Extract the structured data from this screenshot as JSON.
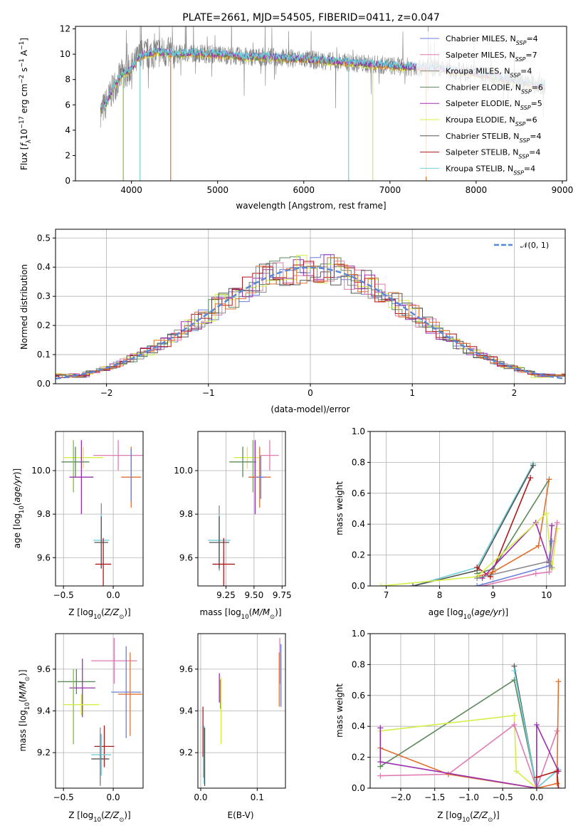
{
  "colors": {
    "Chabrier MILES": "#6a7fdb",
    "Salpeter MILES": "#e07ab0",
    "Kroupa MILES": "#8a8a8a",
    "Chabrier ELODIE": "#5b8a5b",
    "Salpeter ELODIE": "#9a2fb0",
    "Kroupa ELODIE": "#d4ee48",
    "Chabrier STELIB": "#555555",
    "Salpeter STELIB": "#b01818",
    "Kroupa STELIB": "#70d0dc",
    "orange": "#e07030",
    "green": "#7ac040",
    "normal": "#5a86d6"
  },
  "chart_data": [
    {
      "id": "spectrum",
      "type": "line",
      "title": "PLATE=2661, MJD=54505, FIBERID=0411, z=0.047",
      "xlabel": "wavelength [Angstrom, rest frame]",
      "ylabel": "Flux [f_λ 10^-17 erg cm^-2 s^-1 A^-1]",
      "xlim": [
        3350,
        9050
      ],
      "ylim": [
        0,
        12.2
      ],
      "xticks": [
        4000,
        5000,
        6000,
        7000,
        8000,
        9000
      ],
      "yticks": [
        0,
        2,
        4,
        6,
        8,
        10,
        12
      ],
      "legend_position": "upper-right",
      "legend": [
        {
          "name": "Chabrier MILES",
          "sub": "SSP",
          "n": "4"
        },
        {
          "name": "Salpeter MILES",
          "sub": "SSP",
          "n": "7"
        },
        {
          "name": "Kroupa MILES",
          "sub": "SSP",
          "n": "4"
        },
        {
          "name": "Chabrier ELODIE",
          "sub": "SSP",
          "n": "6"
        },
        {
          "name": "Salpeter ELODIE",
          "sub": "SSP",
          "n": "5"
        },
        {
          "name": "Kroupa ELODIE",
          "sub": "SSP",
          "n": "6"
        },
        {
          "name": "Chabrier STELIB",
          "sub": "SSP",
          "n": "4"
        },
        {
          "name": "Salpeter STELIB",
          "sub": "SSP",
          "n": "4"
        },
        {
          "name": "Kroupa STELIB",
          "sub": "SSP",
          "n": "4"
        }
      ],
      "shape_x": [
        3650,
        3700,
        3800,
        3900,
        4000,
        4100,
        4300,
        4500,
        4700,
        5000,
        5300,
        5600,
        6000,
        6400,
        6800,
        7200,
        7500,
        7700,
        7900,
        8100,
        8300,
        8500,
        8800
      ],
      "shape_y": [
        5.5,
        6.0,
        7.5,
        8.5,
        8.8,
        9.9,
        10.2,
        10.0,
        10.1,
        10.0,
        9.8,
        9.8,
        9.6,
        9.4,
        9.2,
        9.0,
        8.9,
        8.7,
        8.6,
        8.4,
        8.1,
        7.8,
        7.4
      ]
    },
    {
      "id": "residuals",
      "type": "histogram",
      "xlabel": "(data-model)/error",
      "ylabel": "Normed distribution",
      "xlim": [
        -2.5,
        2.5
      ],
      "ylim": [
        0,
        0.53
      ],
      "xticks": [
        -2,
        -1,
        0,
        1,
        2
      ],
      "yticks": [
        0.0,
        0.1,
        0.2,
        0.3,
        0.4,
        0.5
      ],
      "legend_position": "upper-right",
      "legend": [
        {
          "name": "𝒩(0, 1)"
        }
      ]
    },
    {
      "id": "age-vs-Z",
      "type": "errorbar",
      "xlabel": "Z [log10(Z/Z⊙)]",
      "ylabel": "age  [log10(age/yr)]",
      "xlim": [
        -0.58,
        0.3
      ],
      "ylim": [
        9.47,
        10.18
      ],
      "xticks": [
        -0.5,
        0.0
      ],
      "yticks": [
        9.6,
        9.8,
        10.0
      ],
      "points": [
        {
          "c": "Salpeter MILES",
          "x": 0.05,
          "y": 10.07,
          "ex": 0.25,
          "ey": 0.07
        },
        {
          "c": "Kroupa ELODIE",
          "x": -0.3,
          "y": 10.06,
          "ex": 0.2,
          "ey": 0.05
        },
        {
          "c": "Chabrier ELODIE",
          "x": -0.38,
          "y": 10.04,
          "ex": 0.14,
          "ey": 0.07
        },
        {
          "c": "green",
          "x": -0.4,
          "y": 10.02,
          "ex": 0.0,
          "ey": 0.12
        },
        {
          "c": "Salpeter ELODIE",
          "x": -0.32,
          "y": 9.97,
          "ex": 0.12,
          "ey": 0.17
        },
        {
          "c": "orange",
          "x": 0.18,
          "y": 9.97,
          "ex": 0.1,
          "ey": 0.14
        },
        {
          "c": "Chabrier MILES",
          "x": 0.18,
          "y": 9.98,
          "ex": 0.0,
          "ey": 0.12
        },
        {
          "c": "Kroupa MILES",
          "x": -0.12,
          "y": 9.7,
          "ex": 0.0,
          "ey": 0.15
        },
        {
          "c": "Kroupa STELIB",
          "x": -0.12,
          "y": 9.68,
          "ex": 0.08,
          "ey": 0.12
        },
        {
          "c": "Chabrier STELIB",
          "x": -0.12,
          "y": 9.67,
          "ex": 0.07,
          "ey": 0.12
        },
        {
          "c": "Salpeter STELIB",
          "x": -0.1,
          "y": 9.57,
          "ex": 0.08,
          "ey": 0.12
        }
      ]
    },
    {
      "id": "age-vs-mass",
      "type": "errorbar",
      "xlabel": "mass [log10(M/M⊙)]",
      "ylabel": "",
      "xlim": [
        9.0,
        9.78
      ],
      "ylim": [
        9.47,
        10.18
      ],
      "xticks": [
        9.25,
        9.5,
        9.75
      ],
      "yticks": [
        9.6,
        9.8,
        10.0
      ],
      "points": [
        {
          "c": "Salpeter MILES",
          "x": 9.64,
          "y": 10.07,
          "ex": 0.08,
          "ey": 0.07
        },
        {
          "c": "Kroupa ELODIE",
          "x": 9.44,
          "y": 10.06,
          "ex": 0.12,
          "ey": 0.05
        },
        {
          "c": "Chabrier ELODIE",
          "x": 9.4,
          "y": 10.04,
          "ex": 0.12,
          "ey": 0.07
        },
        {
          "c": "green",
          "x": 9.49,
          "y": 10.02,
          "ex": 0.0,
          "ey": 0.12
        },
        {
          "c": "Salpeter ELODIE",
          "x": 9.51,
          "y": 9.97,
          "ex": 0.05,
          "ey": 0.17
        },
        {
          "c": "orange",
          "x": 9.55,
          "y": 9.97,
          "ex": 0.1,
          "ey": 0.14
        },
        {
          "c": "Chabrier MILES",
          "x": 9.56,
          "y": 9.97,
          "ex": 0.04,
          "ey": 0.1
        },
        {
          "c": "Kroupa MILES",
          "x": 9.19,
          "y": 9.69,
          "ex": 0.0,
          "ey": 0.15
        },
        {
          "c": "Kroupa STELIB",
          "x": 9.19,
          "y": 9.68,
          "ex": 0.1,
          "ey": 0.12
        },
        {
          "c": "Chabrier STELIB",
          "x": 9.19,
          "y": 9.67,
          "ex": 0.09,
          "ey": 0.12
        },
        {
          "c": "Salpeter STELIB",
          "x": 9.23,
          "y": 9.57,
          "ex": 0.1,
          "ey": 0.12
        }
      ]
    },
    {
      "id": "massweight-vs-age",
      "type": "line",
      "xlabel": "age  [log10(age/yr)]",
      "ylabel": "mass weight",
      "xlim": [
        6.7,
        10.35
      ],
      "ylim": [
        0,
        1.0
      ],
      "xticks": [
        7,
        8,
        9,
        10
      ],
      "yticks": [
        0.0,
        0.2,
        0.4,
        0.6,
        0.8,
        1.0
      ],
      "series": [
        {
          "c": "Kroupa STELIB",
          "x": [
            7.5,
            8.7,
            9.75
          ],
          "y": [
            0.0,
            0.12,
            0.79
          ]
        },
        {
          "c": "Chabrier STELIB",
          "x": [
            7.5,
            8.7,
            9.75
          ],
          "y": [
            0.0,
            0.1,
            0.78
          ]
        },
        {
          "c": "Salpeter STELIB",
          "x": [
            8.7,
            8.95,
            9.7
          ],
          "y": [
            0.12,
            0.06,
            0.7
          ]
        },
        {
          "c": "Chabrier ELODIE",
          "x": [
            8.7,
            9.0,
            10.05
          ],
          "y": [
            0.08,
            0.11,
            0.69
          ]
        },
        {
          "c": "orange",
          "x": [
            8.7,
            9.0,
            9.85,
            10.05
          ],
          "y": [
            0.06,
            0.09,
            0.26,
            0.69
          ]
        },
        {
          "c": "Salpeter ELODIE",
          "x": [
            8.8,
            9.8,
            10.05,
            10.1
          ],
          "y": [
            0.05,
            0.41,
            0.15,
            0.39
          ]
        },
        {
          "c": "Kroupa ELODIE",
          "x": [
            6.9,
            8.7,
            10.0,
            10.1,
            10.2
          ],
          "y": [
            0.0,
            0.06,
            0.47,
            0.11,
            0.37
          ]
        },
        {
          "c": "Salpeter MILES",
          "x": [
            8.8,
            9.8,
            10.05,
            10.2
          ],
          "y": [
            0.0,
            0.08,
            0.09,
            0.41
          ]
        },
        {
          "c": "Chabrier MILES",
          "x": [
            8.7,
            10.05,
            10.1
          ],
          "y": [
            0.0,
            0.13,
            0.29
          ]
        },
        {
          "c": "Kroupa MILES",
          "x": [
            8.7,
            10.05,
            10.1
          ],
          "y": [
            0.05,
            0.16,
            0.12
          ]
        }
      ]
    },
    {
      "id": "mass-vs-Z",
      "type": "errorbar",
      "xlabel": "Z [log10(Z/Z⊙)]",
      "ylabel": "mass [log10(M/M⊙)]",
      "xlim": [
        -0.58,
        0.3
      ],
      "ylim": [
        9.03,
        9.77
      ],
      "xticks": [
        -0.5,
        0.0
      ],
      "yticks": [
        9.2,
        9.4,
        9.6
      ],
      "points": [
        {
          "c": "Salpeter MILES",
          "x": 0.01,
          "y": 9.64,
          "ex": 0.23,
          "ey": 0.11
        },
        {
          "c": "Chabrier ELODIE",
          "x": -0.37,
          "y": 9.54,
          "ex": 0.19,
          "ey": 0.06
        },
        {
          "c": "Salpeter ELODIE",
          "x": -0.31,
          "y": 9.51,
          "ex": 0.13,
          "ey": 0.14
        },
        {
          "c": "Chabrier MILES",
          "x": 0.13,
          "y": 9.49,
          "ex": 0.15,
          "ey": 0.22
        },
        {
          "c": "orange",
          "x": 0.17,
          "y": 9.48,
          "ex": 0.12,
          "ey": 0.2
        },
        {
          "c": "green",
          "x": -0.4,
          "y": 9.42,
          "ex": 0.0,
          "ey": 0.18
        },
        {
          "c": "Kroupa ELODIE",
          "x": -0.32,
          "y": 9.43,
          "ex": 0.18,
          "ey": 0.05
        },
        {
          "c": "Salpeter STELIB",
          "x": -0.09,
          "y": 9.23,
          "ex": 0.1,
          "ey": 0.1
        },
        {
          "c": "Kroupa STELIB",
          "x": -0.12,
          "y": 9.19,
          "ex": 0.1,
          "ey": 0.1
        },
        {
          "c": "Chabrier STELIB",
          "x": -0.13,
          "y": 9.17,
          "ex": 0.09,
          "ey": 0.12
        },
        {
          "c": "Kroupa MILES",
          "x": -0.13,
          "y": 9.18,
          "ex": 0.0,
          "ey": 0.14
        }
      ]
    },
    {
      "id": "mass-vs-EBV",
      "type": "errorbar",
      "xlabel": "E(B-V)",
      "ylabel": "",
      "xlim": [
        -0.005,
        0.15
      ],
      "ylim": [
        9.03,
        9.77
      ],
      "xticks": [
        0.0,
        0.1
      ],
      "yticks": [
        9.2,
        9.4,
        9.6
      ],
      "points": [
        {
          "c": "Salpeter MILES",
          "x": 0.14,
          "y": 9.64,
          "ex": 0.0,
          "ey": 0.11
        },
        {
          "c": "Chabrier MILES",
          "x": 0.142,
          "y": 9.57,
          "ex": 0.0,
          "ey": 0.15
        },
        {
          "c": "orange",
          "x": 0.139,
          "y": 9.55,
          "ex": 0.0,
          "ey": 0.13
        },
        {
          "c": "Salpeter ELODIE",
          "x": 0.033,
          "y": 9.51,
          "ex": 0.0,
          "ey": 0.07
        },
        {
          "c": "Chabrier ELODIE",
          "x": 0.035,
          "y": 9.48,
          "ex": 0.0,
          "ey": 0.07
        },
        {
          "c": "Kroupa ELODIE",
          "x": 0.036,
          "y": 9.4,
          "ex": 0.0,
          "ey": 0.16
        },
        {
          "c": "Salpeter STELIB",
          "x": 0.004,
          "y": 9.3,
          "ex": 0.0,
          "ey": 0.12
        },
        {
          "c": "Kroupa STELIB",
          "x": 0.006,
          "y": 9.19,
          "ex": 0.0,
          "ey": 0.14
        },
        {
          "c": "Chabrier STELIB",
          "x": 0.007,
          "y": 9.18,
          "ex": 0.0,
          "ey": 0.14
        },
        {
          "c": "Kroupa MILES",
          "x": 0.005,
          "y": 9.2,
          "ex": 0.0,
          "ey": 0.12
        }
      ]
    },
    {
      "id": "massweight-vs-Z",
      "type": "line",
      "xlabel": "Z [log10(Z/Z⊙)]",
      "ylabel": "mass weight",
      "xlim": [
        -2.45,
        0.42
      ],
      "ylim": [
        0,
        1.0
      ],
      "xticks": [
        -2.0,
        -1.5,
        -1.0,
        -0.5,
        0.0
      ],
      "yticks": [
        0.0,
        0.2,
        0.4,
        0.6,
        0.8,
        1.0
      ],
      "series": [
        {
          "c": "Chabrier ELODIE",
          "x": [
            -2.3,
            -0.33,
            0.0
          ],
          "y": [
            0.14,
            0.7,
            0.0
          ]
        },
        {
          "c": "Chabrier STELIB",
          "x": [
            -0.33,
            0.0,
            0.32
          ],
          "y": [
            0.79,
            0.0,
            0.12
          ]
        },
        {
          "c": "Kroupa STELIB",
          "x": [
            -0.33,
            0.0,
            0.32
          ],
          "y": [
            0.76,
            0.0,
            0.12
          ]
        },
        {
          "c": "Kroupa ELODIE",
          "x": [
            -2.3,
            -0.33,
            -0.3,
            0.0
          ],
          "y": [
            0.37,
            0.47,
            0.11,
            0.0
          ]
        },
        {
          "c": "Salpeter MILES",
          "x": [
            -2.3,
            -1.3,
            -0.33,
            0.0,
            0.3
          ],
          "y": [
            0.08,
            0.09,
            0.41,
            0.0,
            0.37
          ]
        },
        {
          "c": "orange",
          "x": [
            -2.3,
            -1.3,
            0.0,
            0.3,
            0.32
          ],
          "y": [
            0.26,
            0.09,
            0.0,
            0.03,
            0.69
          ]
        },
        {
          "c": "Salpeter ELODIE",
          "x": [
            -2.3,
            -2.3,
            0.0,
            0.0,
            0.32
          ],
          "y": [
            0.39,
            0.17,
            0.0,
            0.41,
            0.11
          ]
        },
        {
          "c": "Salpeter STELIB",
          "x": [
            0.0,
            0.3,
            0.32
          ],
          "y": [
            0.07,
            0.11,
            0.0
          ]
        }
      ]
    }
  ],
  "labels": {
    "spectrum_title": "PLATE=2661, MJD=54505, FIBERID=0411, z=0.047",
    "spectrum_xlabel": "wavelength [Angstrom, rest frame]",
    "resid_xlabel": "(data-model)/error",
    "resid_ylabel": "Normed distribution",
    "normal_label": "𝒩(0, 1)",
    "mass_weight": "mass weight",
    "ebv": "E(B-V)"
  }
}
